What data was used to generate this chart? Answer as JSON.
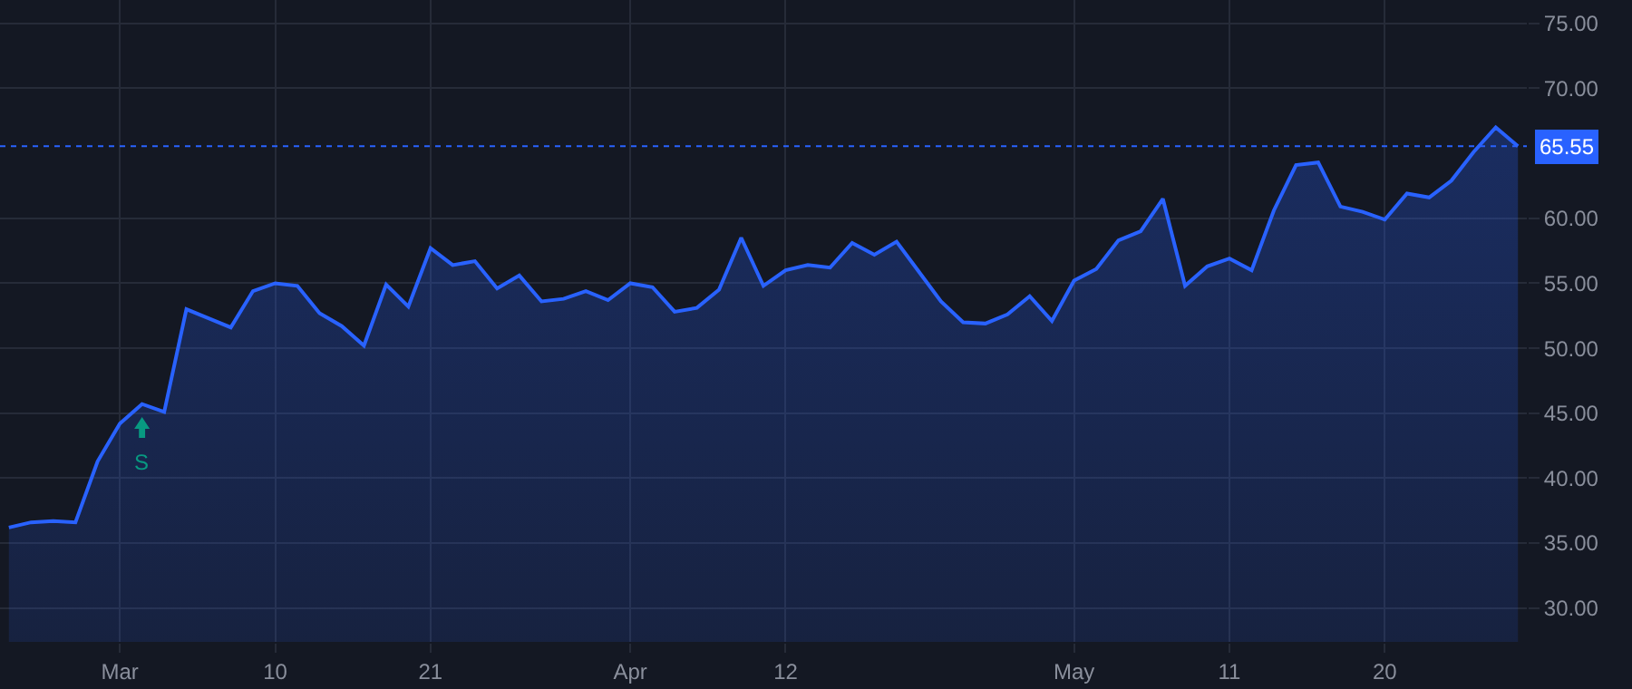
{
  "chart_data": {
    "type": "area",
    "categories": [
      null,
      null,
      null,
      null,
      null,
      "Mar",
      null,
      null,
      null,
      null,
      null,
      null,
      "10",
      null,
      null,
      null,
      null,
      null,
      null,
      "21",
      null,
      null,
      null,
      null,
      null,
      null,
      null,
      null,
      "Apr",
      null,
      null,
      null,
      null,
      null,
      null,
      "12",
      null,
      null,
      null,
      null,
      null,
      null,
      null,
      null,
      null,
      null,
      null,
      null,
      "May",
      null,
      null,
      null,
      null,
      null,
      null,
      "11",
      null,
      null,
      null,
      null,
      null,
      null,
      "20",
      null,
      null,
      null,
      null,
      null,
      null
    ],
    "series": [
      {
        "color": "#2962ff",
        "values": [
          36.2,
          36.6,
          36.7,
          36.6,
          41.3,
          44.2,
          45.7,
          45.1,
          53.0,
          52.3,
          51.6,
          54.4,
          55.0,
          54.8,
          52.7,
          51.7,
          50.2,
          54.9,
          53.2,
          57.7,
          56.4,
          56.7,
          54.6,
          55.6,
          53.6,
          53.8,
          54.4,
          53.7,
          55.0,
          54.7,
          52.8,
          53.1,
          54.5,
          58.5,
          54.8,
          56.0,
          56.4,
          56.2,
          58.1,
          57.2,
          58.2,
          55.9,
          53.6,
          52.0,
          51.9,
          52.6,
          54.0,
          52.1,
          55.2,
          56.1,
          58.3,
          59.0,
          61.5,
          54.8,
          56.3,
          56.9,
          56.0,
          60.6,
          64.1,
          64.3,
          60.9,
          60.5,
          59.9,
          61.9,
          61.6,
          62.9,
          65.1,
          67.0,
          65.55
        ]
      }
    ],
    "ylim": [
      27.4,
      76.8
    ],
    "yticks": [
      {
        "value": 30,
        "label": "30.00"
      },
      {
        "value": 35,
        "label": "35.00"
      },
      {
        "value": 40,
        "label": "40.00"
      },
      {
        "value": 45,
        "label": "45.00"
      },
      {
        "value": 50,
        "label": "50.00"
      },
      {
        "value": 55,
        "label": "55.00"
      },
      {
        "value": 60,
        "label": "60.00"
      },
      {
        "value": 70,
        "label": "70.00"
      },
      {
        "value": 75,
        "label": "75.00"
      }
    ],
    "ref_lines": [
      {
        "axis": "y",
        "value": 65.55,
        "label": "65.55",
        "color": "#2962ff",
        "line_style": "dotted"
      }
    ],
    "annotations": [
      {
        "text": "S",
        "y": 45.7
      }
    ],
    "grid": true
  }
}
